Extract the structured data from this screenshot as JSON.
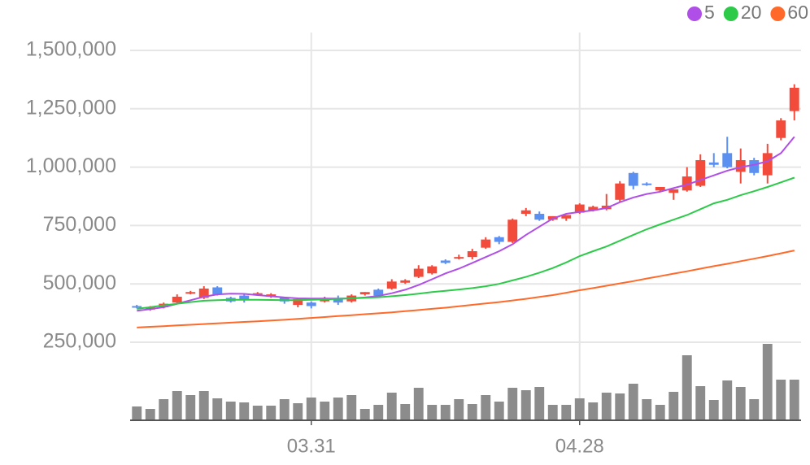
{
  "chart_data": {
    "type": "candlestick",
    "categories": [
      null,
      null,
      null,
      null,
      null,
      null,
      null,
      null,
      null,
      null,
      null,
      null,
      null,
      "03.31",
      null,
      null,
      null,
      null,
      null,
      null,
      null,
      null,
      null,
      null,
      null,
      null,
      null,
      null,
      null,
      null,
      null,
      null,
      null,
      "04.28",
      null,
      null,
      null,
      null,
      null,
      null,
      null,
      null,
      null,
      null,
      null,
      null,
      null,
      null,
      null,
      null
    ],
    "open": [
      405000,
      390000,
      400000,
      420000,
      460000,
      440000,
      485000,
      440000,
      450000,
      455000,
      445000,
      440000,
      410000,
      420000,
      425000,
      440000,
      425000,
      455000,
      475000,
      480000,
      505000,
      530000,
      545000,
      600000,
      610000,
      615000,
      655000,
      700000,
      680000,
      800000,
      800000,
      775000,
      780000,
      805000,
      815000,
      820000,
      860000,
      975000,
      930000,
      900000,
      890000,
      900000,
      920000,
      1020000,
      1060000,
      980000,
      1030000,
      965000,
      1125000,
      1240000
    ],
    "high": [
      410000,
      405000,
      420000,
      455000,
      470000,
      490000,
      490000,
      445000,
      455000,
      465000,
      460000,
      445000,
      440000,
      425000,
      445000,
      450000,
      455000,
      465000,
      480000,
      520000,
      520000,
      580000,
      580000,
      605000,
      625000,
      650000,
      700000,
      705000,
      780000,
      825000,
      810000,
      790000,
      795000,
      845000,
      835000,
      885000,
      940000,
      980000,
      935000,
      915000,
      905000,
      1000000,
      1055000,
      1060000,
      1130000,
      1080000,
      1040000,
      1100000,
      1210000,
      1355000
    ],
    "low": [
      395000,
      385000,
      395000,
      415000,
      455000,
      435000,
      450000,
      420000,
      420000,
      450000,
      440000,
      415000,
      400000,
      395000,
      420000,
      410000,
      420000,
      450000,
      445000,
      475000,
      500000,
      525000,
      540000,
      585000,
      605000,
      605000,
      650000,
      670000,
      675000,
      790000,
      770000,
      770000,
      770000,
      800000,
      810000,
      815000,
      850000,
      905000,
      920000,
      895000,
      860000,
      895000,
      915000,
      1000000,
      995000,
      930000,
      965000,
      930000,
      1115000,
      1200000
    ],
    "close": [
      400000,
      400000,
      415000,
      445000,
      465000,
      480000,
      455000,
      425000,
      430000,
      460000,
      455000,
      425000,
      435000,
      405000,
      440000,
      420000,
      450000,
      465000,
      450000,
      510000,
      515000,
      565000,
      575000,
      590000,
      615000,
      640000,
      690000,
      680000,
      775000,
      815000,
      775000,
      790000,
      795000,
      840000,
      830000,
      835000,
      930000,
      920000,
      925000,
      915000,
      905000,
      960000,
      1030000,
      1010000,
      1000000,
      1030000,
      975000,
      1060000,
      1200000,
      1340000
    ],
    "up_color": "#f24b3b",
    "down_color": "#5b8ff0",
    "volume": [
      17,
      14,
      26,
      36,
      31,
      36,
      27,
      23,
      22,
      18,
      18,
      26,
      21,
      28,
      23,
      28,
      31,
      14,
      19,
      34,
      20,
      40,
      19,
      19,
      26,
      20,
      31,
      23,
      40,
      37,
      41,
      19,
      19,
      27,
      22,
      34,
      33,
      45,
      26,
      19,
      35,
      80,
      42,
      25,
      49,
      41,
      26,
      94,
      50,
      50
    ],
    "volume_color": "#8c8c8c",
    "volume_lim": [
      0,
      100
    ],
    "moving_averages": [
      {
        "name": "5",
        "color": "#b04ee8",
        "values": [
          385000,
          392000,
          400000,
          415000,
          430000,
          445000,
          455000,
          458000,
          457000,
          452000,
          447000,
          442000,
          438000,
          437000,
          437000,
          437000,
          438000,
          442000,
          448000,
          460000,
          475000,
          495000,
          520000,
          545000,
          565000,
          590000,
          615000,
          640000,
          670000,
          710000,
          745000,
          780000,
          800000,
          808000,
          815000,
          825000,
          850000,
          870000,
          885000,
          895000,
          910000,
          925000,
          945000,
          965000,
          985000,
          1000000,
          1010000,
          1025000,
          1060000,
          1130000
        ]
      },
      {
        "name": "20",
        "color": "#2dca4a",
        "values": [
          393000,
          400000,
          408000,
          415000,
          422000,
          428000,
          430000,
          432000,
          432000,
          432000,
          431000,
          430000,
          430000,
          432000,
          434000,
          436000,
          438000,
          440000,
          443000,
          447000,
          452000,
          458000,
          465000,
          470000,
          476000,
          482000,
          490000,
          500000,
          515000,
          530000,
          548000,
          568000,
          592000,
          619000,
          640000,
          660000,
          685000,
          710000,
          734000,
          755000,
          775000,
          795000,
          820000,
          845000,
          860000,
          880000,
          897000,
          915000,
          935000,
          955000
        ]
      },
      {
        "name": "60",
        "color": "#ff6a2a",
        "values": [
          313000,
          316000,
          319000,
          322000,
          325000,
          328000,
          331000,
          334000,
          337000,
          340000,
          343000,
          346000,
          350000,
          354000,
          358000,
          362000,
          366000,
          370000,
          374000,
          378000,
          383000,
          388000,
          393000,
          398000,
          404000,
          410000,
          416000,
          422000,
          429000,
          436000,
          444000,
          452000,
          462000,
          473000,
          482000,
          492000,
          502000,
          512000,
          523000,
          533000,
          544000,
          554000,
          565000,
          576000,
          586000,
          597000,
          608000,
          619000,
          631000,
          643000
        ]
      }
    ],
    "ylim": [
      250000,
      1500000
    ],
    "yticks": [
      {
        "value": 250000,
        "label": "250,000"
      },
      {
        "value": 500000,
        "label": "500,000"
      },
      {
        "value": 750000,
        "label": "750,000"
      },
      {
        "value": 1000000,
        "label": "1,000,000"
      },
      {
        "value": 1250000,
        "label": "1,250,000"
      },
      {
        "value": 1500000,
        "label": "1,500,000"
      }
    ],
    "grid": true,
    "legend": "top-right"
  }
}
